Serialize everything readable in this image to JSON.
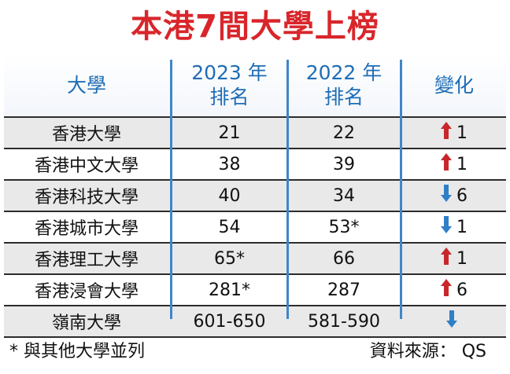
{
  "title": "本港7間大學上榜",
  "headers": {
    "university": "大學",
    "rank2023_line1": "2023 年",
    "rank2023_line2": "排名",
    "rank2022_line1": "2022 年",
    "rank2022_line2": "排名",
    "change": "變化"
  },
  "rows": [
    {
      "name": "香港大學",
      "rank2023": "21",
      "rank2022": "22",
      "change_direction": "up",
      "change_value": "1"
    },
    {
      "name": "香港中文大學",
      "rank2023": "38",
      "rank2022": "39",
      "change_direction": "up",
      "change_value": "1"
    },
    {
      "name": "香港科技大學",
      "rank2023": "40",
      "rank2022": "34",
      "change_direction": "down",
      "change_value": "6"
    },
    {
      "name": "香港城市大學",
      "rank2023": "54",
      "rank2022": "53*",
      "change_direction": "down",
      "change_value": "1"
    },
    {
      "name": "香港理工大學",
      "rank2023": "65*",
      "rank2022": "66",
      "change_direction": "up",
      "change_value": "1"
    },
    {
      "name": "香港浸會大學",
      "rank2023": "281*",
      "rank2022": "287",
      "change_direction": "up",
      "change_value": "6"
    },
    {
      "name": "嶺南大學",
      "rank2023": "601-650",
      "rank2022": "581-590",
      "change_direction": "down",
      "change_value": ""
    }
  ],
  "colors": {
    "title": "#d8262b",
    "header": "#1f6db6",
    "up_arrow": "#c8262b",
    "down_arrow": "#2f7fc6",
    "row_shade": "#e9e9e9"
  },
  "footer": {
    "note": "* 與其他大學並列",
    "source": "資料來源： QS"
  }
}
